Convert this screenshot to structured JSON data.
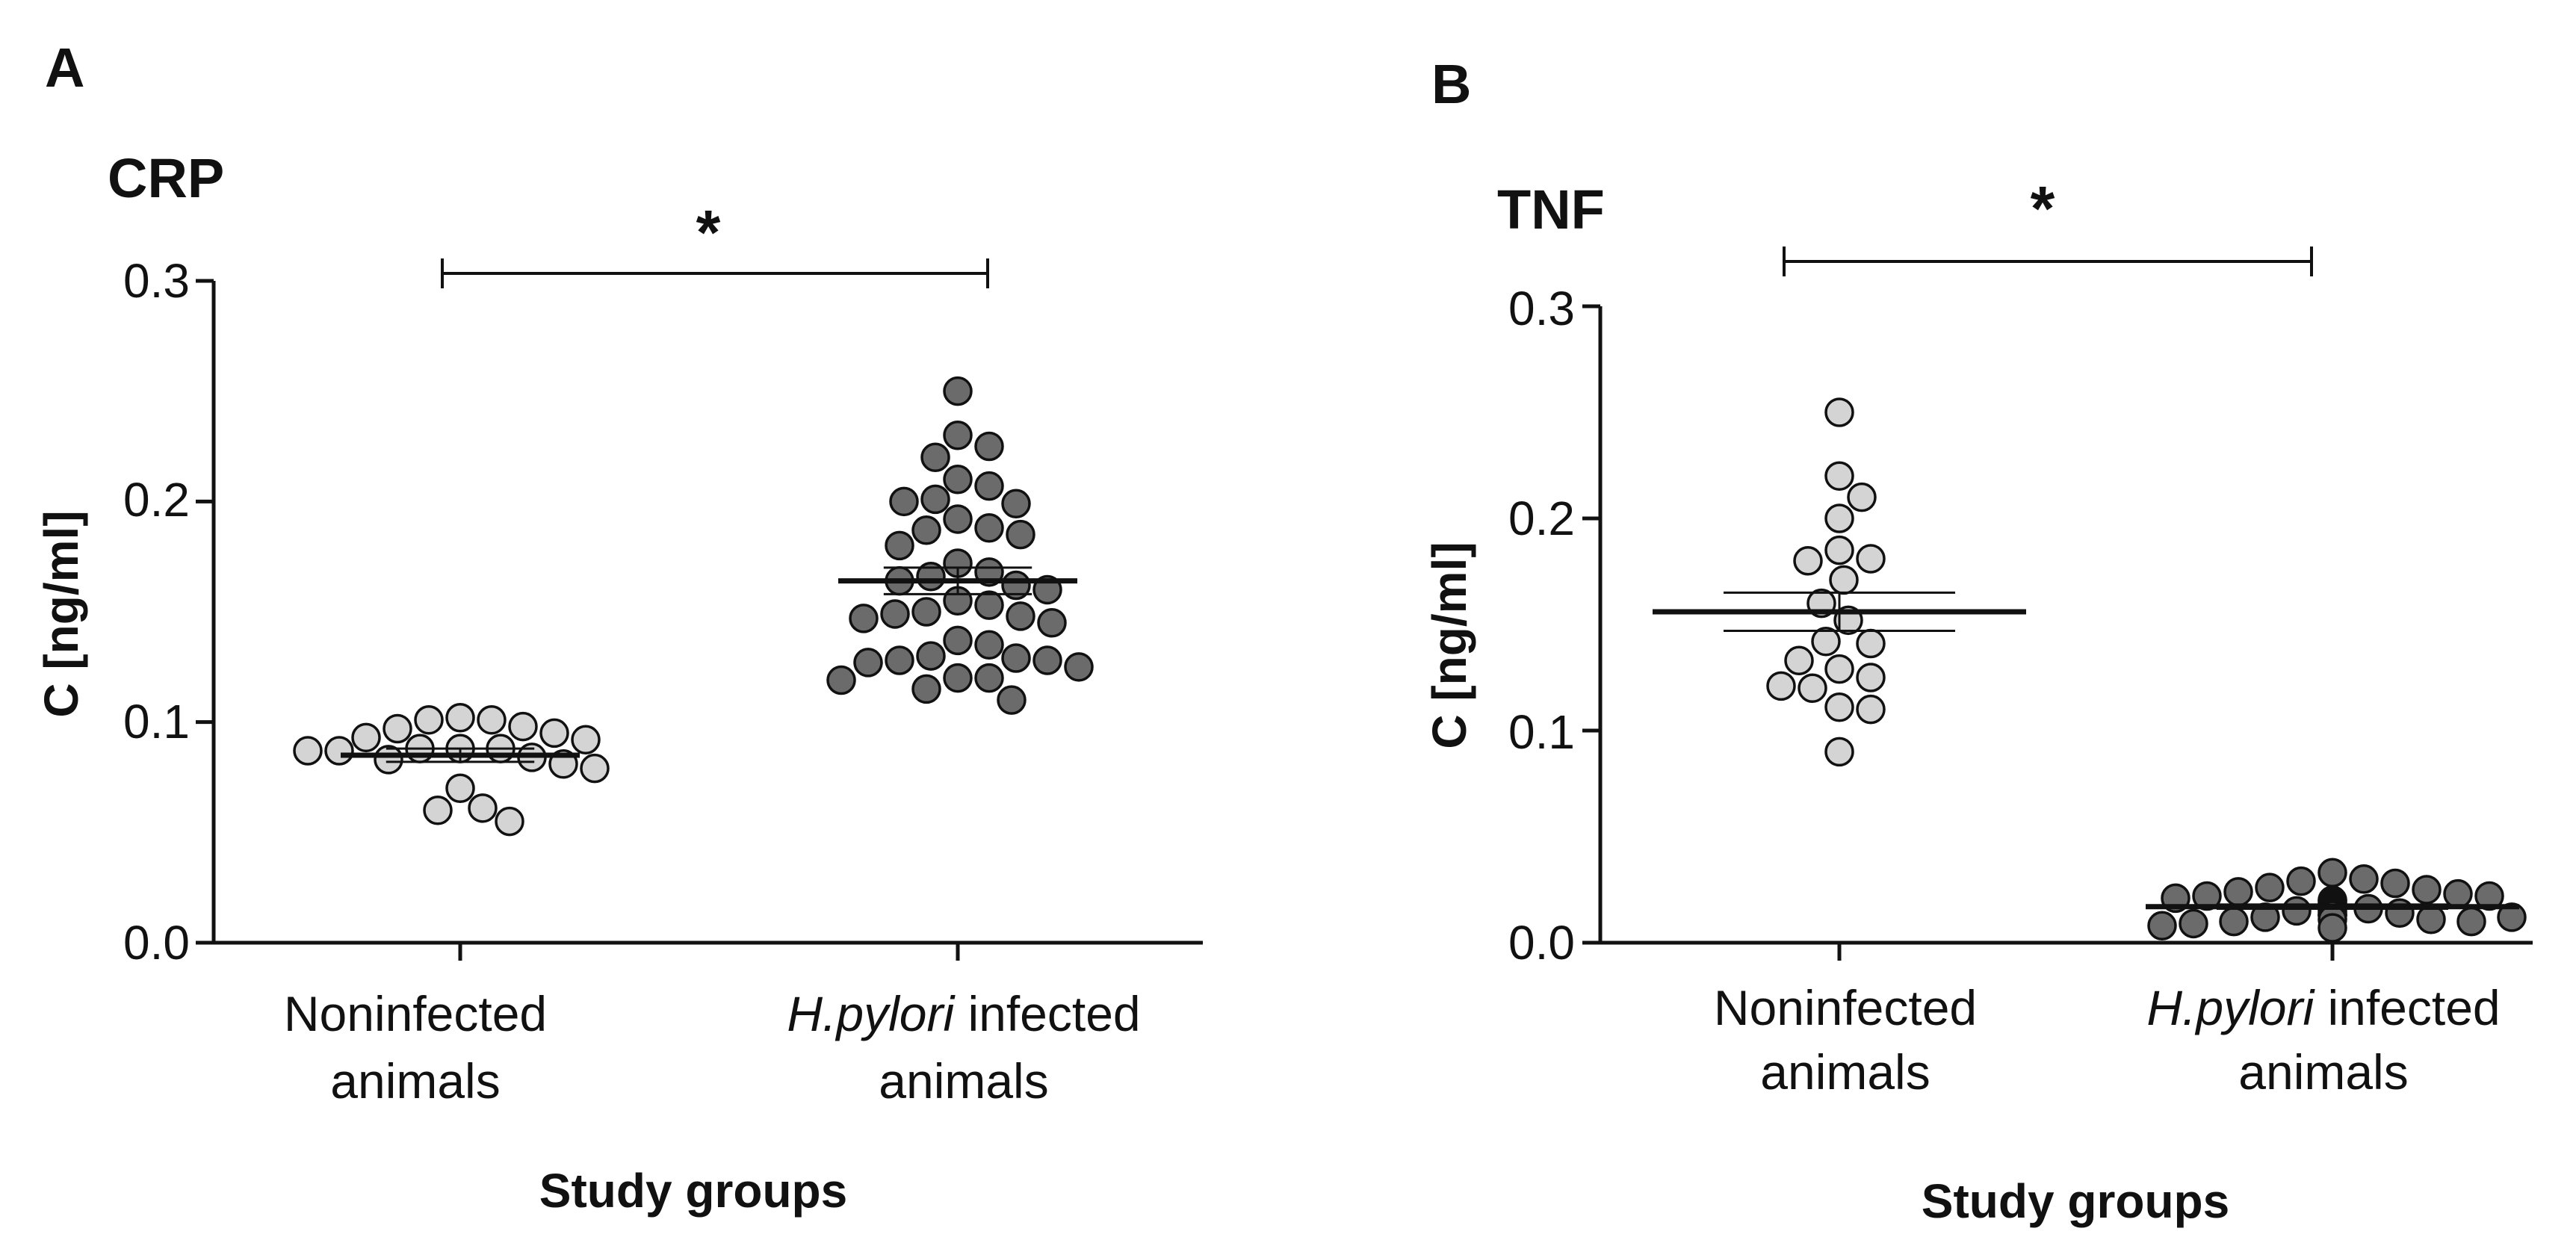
{
  "colors": {
    "noninfected": "#d4d4d4",
    "infected": "#6b6b6b",
    "stroke": "#111111"
  },
  "chart_data": [
    {
      "type": "scatter",
      "panel_label": "A",
      "title": "CRP",
      "ylabel": "C [ng/ml]",
      "xlabel": "Study groups",
      "ylim": [
        0,
        0.3
      ],
      "yticks": [
        "0.0",
        "0.1",
        "0.2",
        "0.3"
      ],
      "categories": [
        {
          "line1": "Noninfected",
          "line1_italic": "",
          "line2": "animals"
        },
        {
          "line1": " infected",
          "line1_italic": "H.pylori",
          "line2": "animals"
        }
      ],
      "significance": "*",
      "series": [
        {
          "name": "Noninfected animals",
          "mean": 0.085,
          "sem": 0.003,
          "values": [
            0.102,
            0.101,
            0.101,
            0.097,
            0.098,
            0.095,
            0.093,
            0.092,
            0.088,
            0.087,
            0.088,
            0.088,
            0.087,
            0.084,
            0.083,
            0.081,
            0.079,
            0.07,
            0.061,
            0.06,
            0.055
          ]
        },
        {
          "name": "H.pylori infected animals",
          "mean": 0.164,
          "sem": 0.006,
          "values": [
            0.25,
            0.23,
            0.225,
            0.22,
            0.21,
            0.207,
            0.2,
            0.199,
            0.201,
            0.192,
            0.187,
            0.188,
            0.185,
            0.18,
            0.172,
            0.168,
            0.166,
            0.164,
            0.162,
            0.16,
            0.155,
            0.153,
            0.15,
            0.149,
            0.148,
            0.147,
            0.145,
            0.137,
            0.135,
            0.13,
            0.129,
            0.128,
            0.128,
            0.127,
            0.125,
            0.12,
            0.12,
            0.119,
            0.115,
            0.11
          ]
        }
      ]
    },
    {
      "type": "scatter",
      "panel_label": "B",
      "title": "TNF",
      "ylabel": "C [ng/ml]",
      "xlabel": "Study groups",
      "ylim": [
        0,
        0.3
      ],
      "yticks": [
        "0.0",
        "0.1",
        "0.2",
        "0.3"
      ],
      "categories": [
        {
          "line1": "Noninfected",
          "line1_italic": "",
          "line2": "animals"
        },
        {
          "line1": " infected",
          "line1_italic": "H.pylori",
          "line2": "animals"
        }
      ],
      "significance": "*",
      "series": [
        {
          "name": "Noninfected animals",
          "mean": 0.156,
          "sem": 0.009,
          "values": [
            0.25,
            0.22,
            0.21,
            0.2,
            0.185,
            0.181,
            0.18,
            0.171,
            0.16,
            0.152,
            0.142,
            0.141,
            0.133,
            0.129,
            0.125,
            0.121,
            0.12,
            0.111,
            0.11,
            0.09
          ]
        },
        {
          "name": "H.pylori infected animals",
          "mean": 0.017,
          "sem": 0.001,
          "values": [
            0.033,
            0.03,
            0.029,
            0.028,
            0.026,
            0.025,
            0.024,
            0.023,
            0.022,
            0.022,
            0.021,
            0.02,
            0.02,
            0.019,
            0.018,
            0.018,
            0.017,
            0.016,
            0.016,
            0.015,
            0.015,
            0.014,
            0.014,
            0.013,
            0.013,
            0.013,
            0.012,
            0.012,
            0.011,
            0.011,
            0.01,
            0.01,
            0.009,
            0.008,
            0.007
          ]
        }
      ]
    }
  ]
}
